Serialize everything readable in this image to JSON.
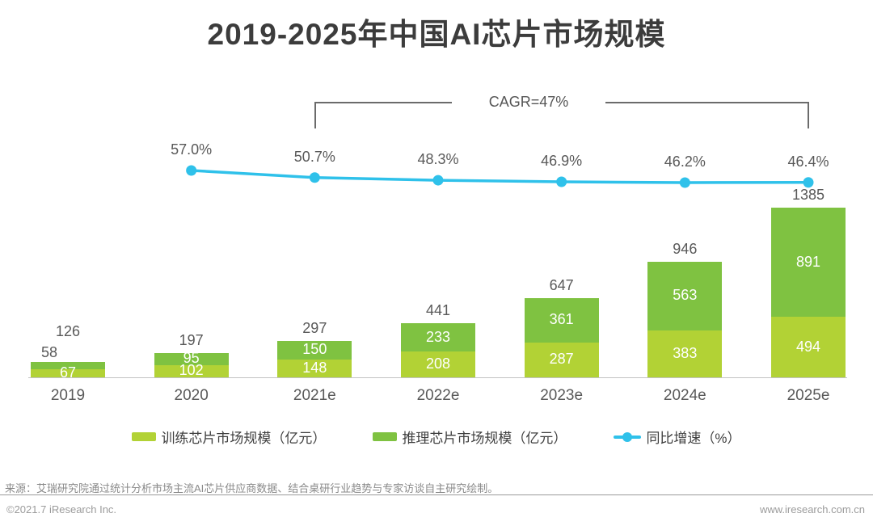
{
  "page": {
    "title": "2019-2025年中国AI芯片市场规模",
    "source": "来源：艾瑞研究院通过统计分析市场主流AI芯片供应商数据、结合桌研行业趋势与专家访谈自主研究绘制。",
    "footer_left": "©2021.7 iResearch Inc.",
    "footer_right": "www.iresearch.com.cn"
  },
  "chart_data": {
    "type": "bar",
    "subtype": "stacked-bar-with-line",
    "title": "2019-2025年中国AI芯片市场规模",
    "categories": [
      "2019",
      "2020",
      "2021e",
      "2022e",
      "2023e",
      "2024e",
      "2025e"
    ],
    "series": [
      {
        "name": "训练芯片市场规模（亿元）",
        "type": "bar",
        "stack_position": "bottom",
        "color": "#b2d235",
        "values": [
          67,
          102,
          148,
          208,
          287,
          383,
          494
        ]
      },
      {
        "name": "推理芯片市场规模（亿元）",
        "type": "bar",
        "stack_position": "top",
        "color": "#7fc241",
        "values": [
          58,
          95,
          150,
          233,
          361,
          563,
          891
        ]
      },
      {
        "name": "同比增速（%）",
        "type": "line",
        "color": "#2fc1ea",
        "values": [
          null,
          57.0,
          50.7,
          48.3,
          46.9,
          46.2,
          46.4
        ],
        "labels": [
          "",
          "57.0%",
          "50.7%",
          "48.3%",
          "46.9%",
          "46.2%",
          "46.4%"
        ]
      }
    ],
    "totals": [
      126,
      197,
      297,
      441,
      647,
      946,
      1385
    ],
    "annotation": {
      "text": "CAGR=47%",
      "from": "2021e",
      "to": "2025e"
    },
    "legend_position": "bottom",
    "grid": false,
    "value_label_colors": {
      "inside": "#ffffff",
      "outside": "#595959"
    }
  }
}
